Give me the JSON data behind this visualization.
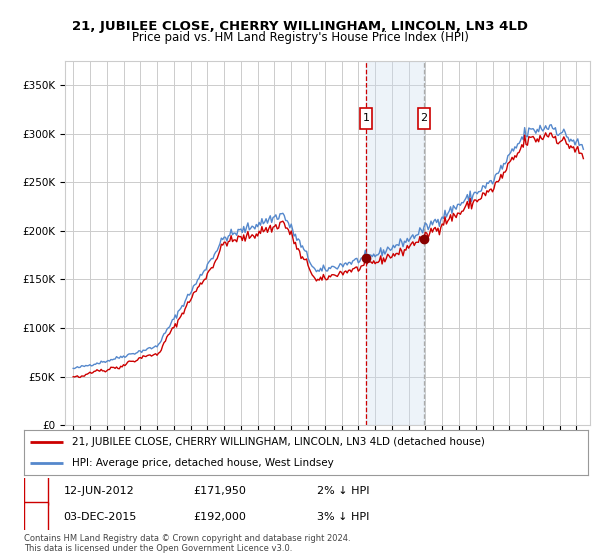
{
  "title": "21, JUBILEE CLOSE, CHERRY WILLINGHAM, LINCOLN, LN3 4LD",
  "subtitle": "Price paid vs. HM Land Registry's House Price Index (HPI)",
  "ylabel_ticks": [
    "£0",
    "£50K",
    "£100K",
    "£150K",
    "£200K",
    "£250K",
    "£300K",
    "£350K"
  ],
  "ytick_values": [
    0,
    50000,
    100000,
    150000,
    200000,
    250000,
    300000,
    350000
  ],
  "ylim": [
    0,
    375000
  ],
  "xlim_left": 1994.5,
  "xlim_right": 2025.8,
  "sale1": {
    "date": "12-JUN-2012",
    "price": 171950,
    "year": 2012.45,
    "label": "1",
    "note": "2% ↓ HPI"
  },
  "sale2": {
    "date": "03-DEC-2015",
    "price": 192000,
    "year": 2015.92,
    "label": "2",
    "note": "3% ↓ HPI"
  },
  "hpi_line_color": "#5588cc",
  "price_line_color": "#cc0000",
  "sale_dot_color": "#880000",
  "background_color": "#ffffff",
  "grid_color": "#cccccc",
  "shade_color": "#ccddf0",
  "vline1_color": "#cc0000",
  "vline2_color": "#aaaaaa",
  "legend_line1": "21, JUBILEE CLOSE, CHERRY WILLINGHAM, LINCOLN, LN3 4LD (detached house)",
  "legend_line2": "HPI: Average price, detached house, West Lindsey",
  "footer1": "Contains HM Land Registry data © Crown copyright and database right 2024.",
  "footer2": "This data is licensed under the Open Government Licence v3.0.",
  "title_fontsize": 9.5,
  "subtitle_fontsize": 8.5,
  "tick_fontsize": 7.5,
  "legend_fontsize": 7.5,
  "table_fontsize": 8.0,
  "footer_fontsize": 6.0
}
